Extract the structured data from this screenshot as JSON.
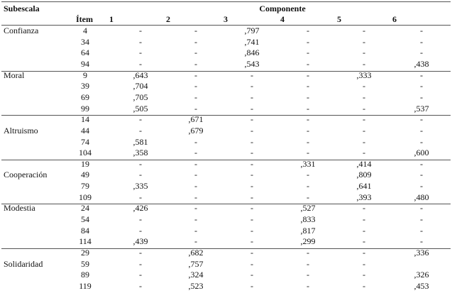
{
  "table": {
    "header": {
      "subscale": "Subescala",
      "component": "Componente",
      "item": "Ítem",
      "columns": [
        "1",
        "2",
        "3",
        "4",
        "5",
        "6"
      ]
    },
    "groups": [
      {
        "label": "Confianza",
        "rows": [
          {
            "item": "4",
            "cells": [
              "-",
              "-",
              ",797",
              "-",
              "-",
              "-"
            ]
          },
          {
            "item": "34",
            "cells": [
              "-",
              "-",
              ",741",
              "-",
              "-",
              "-"
            ]
          },
          {
            "item": "64",
            "cells": [
              "-",
              "-",
              ",846",
              "-",
              "-",
              "-"
            ]
          },
          {
            "item": "94",
            "cells": [
              "-",
              "-",
              ",543",
              "-",
              "-",
              ",438"
            ]
          }
        ]
      },
      {
        "label": "Moral",
        "rows": [
          {
            "item": "9",
            "cells": [
              ",643",
              "-",
              "-",
              "-",
              ",333",
              "-"
            ]
          },
          {
            "item": "39",
            "cells": [
              ",704",
              "-",
              "-",
              "-",
              "-",
              "-"
            ]
          },
          {
            "item": "69",
            "cells": [
              ",705",
              "-",
              "-",
              "-",
              "-",
              "-"
            ]
          },
          {
            "item": "99",
            "cells": [
              ",505",
              "-",
              "-",
              "-",
              "-",
              ",537"
            ]
          }
        ]
      },
      {
        "label": "Altruismo",
        "rows": [
          {
            "item": "14",
            "cells": [
              "-",
              ",671",
              "-",
              "-",
              "-",
              "-"
            ]
          },
          {
            "item": "44",
            "cells": [
              "-",
              ",679",
              "-",
              "-",
              "-",
              "-"
            ]
          },
          {
            "item": "74",
            "cells": [
              ",581",
              "-",
              "-",
              "-",
              "-",
              "-"
            ]
          },
          {
            "item": "104",
            "cells": [
              ",358",
              "-",
              "-",
              "-",
              "-",
              ",600"
            ]
          }
        ]
      },
      {
        "label": "Cooperación",
        "rows": [
          {
            "item": "19",
            "cells": [
              "-",
              "-",
              "-",
              ",331",
              ",414",
              "-"
            ]
          },
          {
            "item": "49",
            "cells": [
              "-",
              "-",
              "-",
              "-",
              ",809",
              "-"
            ]
          },
          {
            "item": "79",
            "cells": [
              ",335",
              "-",
              "-",
              "-",
              ",641",
              "-"
            ]
          },
          {
            "item": "109",
            "cells": [
              "-",
              "-",
              "-",
              "-",
              ",393",
              ",480"
            ]
          }
        ]
      },
      {
        "label": "Modestia",
        "rows": [
          {
            "item": "24",
            "cells": [
              ",426",
              "-",
              "-",
              ",527",
              "-",
              "-"
            ]
          },
          {
            "item": "54",
            "cells": [
              "-",
              "-",
              "-",
              ",833",
              "-",
              "-"
            ]
          },
          {
            "item": "84",
            "cells": [
              "-",
              "-",
              "-",
              ",817",
              "-",
              "-"
            ]
          },
          {
            "item": "114",
            "cells": [
              ",439",
              "-",
              "-",
              ",299",
              "-",
              "-"
            ]
          }
        ]
      },
      {
        "label": "Solidaridad",
        "rows": [
          {
            "item": "29",
            "cells": [
              "-",
              ",682",
              "-",
              "-",
              "-",
              ",336"
            ]
          },
          {
            "item": "59",
            "cells": [
              "-",
              ",757",
              "-",
              "-",
              "-",
              null
            ]
          },
          {
            "item": "89",
            "cells": [
              "-",
              ",324",
              "-",
              "-",
              "-",
              ",326"
            ]
          },
          {
            "item": "119",
            "cells": [
              "-",
              ",523",
              "-",
              "-",
              "-",
              ",453"
            ]
          }
        ]
      }
    ]
  }
}
